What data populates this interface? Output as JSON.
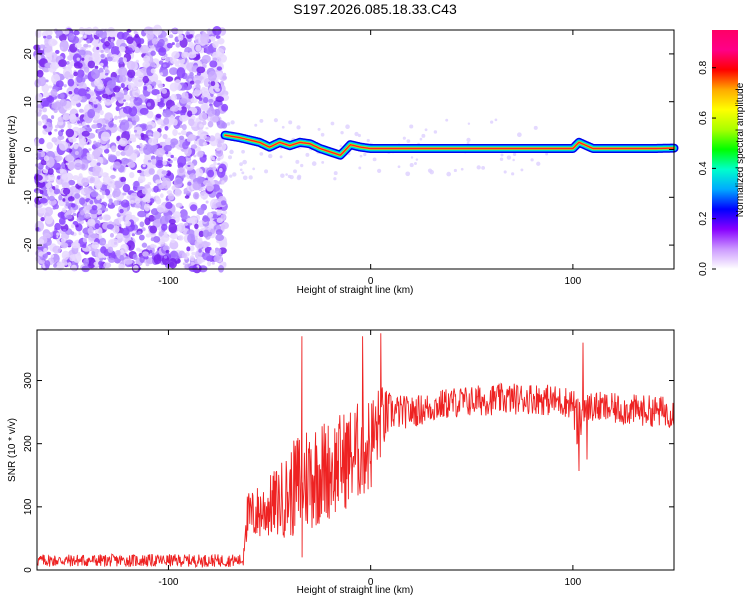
{
  "title": "S197.2026.085.18.33.C43",
  "colorbar": {
    "label": "Normalized spectral amplitude",
    "ticks": [
      "0.0",
      "0.2",
      "0.4",
      "0.6",
      "0.8"
    ],
    "tick_values": [
      0.0,
      0.2,
      0.4,
      0.6,
      0.8
    ],
    "range": [
      0,
      0.95
    ],
    "colors": [
      "#ffffff",
      "#cc99ff",
      "#8800ff",
      "#0000ff",
      "#00aaff",
      "#00ffcc",
      "#00ff00",
      "#aaff00",
      "#ffff00",
      "#ffaa00",
      "#ff0000",
      "#ff0088",
      "#ff0066"
    ]
  },
  "chart_data": [
    {
      "type": "heatmap",
      "name": "spectrogram",
      "xlabel": "Height of straight line (km)",
      "ylabel": "Frequency (Hz)",
      "xlim": [
        -165,
        150
      ],
      "ylim": [
        -25,
        25
      ],
      "x_ticks": [
        -100,
        0,
        100
      ],
      "x_tick_labels": [
        "-100",
        "0",
        "100"
      ],
      "y_ticks": [
        -20,
        -10,
        0,
        10,
        20
      ],
      "y_tick_labels": [
        "-20",
        "-10",
        "0",
        "10",
        "20"
      ],
      "noise_region": [
        -165,
        -72
      ],
      "signal_line": {
        "x": [
          -72,
          -65,
          -60,
          -55,
          -50,
          -45,
          -40,
          -35,
          -30,
          -25,
          -20,
          -15,
          -10,
          -5,
          0,
          20,
          40,
          60,
          80,
          100,
          103,
          110,
          120,
          130,
          140,
          150
        ],
        "y": [
          3,
          2.5,
          2,
          1.5,
          0.5,
          1.5,
          0.8,
          1.5,
          1.2,
          0.2,
          -0.5,
          -1.2,
          1.0,
          0.5,
          0.2,
          0.2,
          0.2,
          0.2,
          0.2,
          0.2,
          1.5,
          0.2,
          0.2,
          0.2,
          0.2,
          0.3
        ]
      }
    },
    {
      "type": "line",
      "name": "snr",
      "xlabel": "Height of straight line (km)",
      "ylabel": "SNR (10 * v/v)",
      "xlim": [
        -165,
        150
      ],
      "ylim": [
        0,
        380
      ],
      "x_ticks": [
        -100,
        0,
        100
      ],
      "x_tick_labels": [
        "-100",
        "0",
        "100"
      ],
      "y_ticks": [
        0,
        100,
        200,
        300
      ],
      "y_tick_labels": [
        "0",
        "100",
        "200",
        "300"
      ],
      "color": "#ee2222",
      "envelope": {
        "x": [
          -165,
          -63,
          -62,
          -50,
          -40,
          -35,
          -30,
          -20,
          -10,
          0,
          5,
          10,
          20,
          40,
          60,
          80,
          100,
          103,
          105,
          120,
          150
        ],
        "mean": [
          15,
          15,
          80,
          100,
          120,
          140,
          150,
          160,
          180,
          200,
          235,
          250,
          250,
          265,
          270,
          272,
          265,
          210,
          260,
          255,
          250
        ],
        "amplitude": [
          10,
          10,
          40,
          50,
          70,
          90,
          90,
          80,
          80,
          80,
          60,
          30,
          25,
          25,
          25,
          25,
          25,
          60,
          25,
          25,
          25
        ]
      },
      "spikes": [
        {
          "x": -34,
          "y": 370
        },
        {
          "x": -34,
          "y": 20
        },
        {
          "x": -4,
          "y": 370
        },
        {
          "x": 5,
          "y": 375
        },
        {
          "x": 105,
          "y": 360
        },
        {
          "x": 107,
          "y": 175
        }
      ]
    }
  ]
}
